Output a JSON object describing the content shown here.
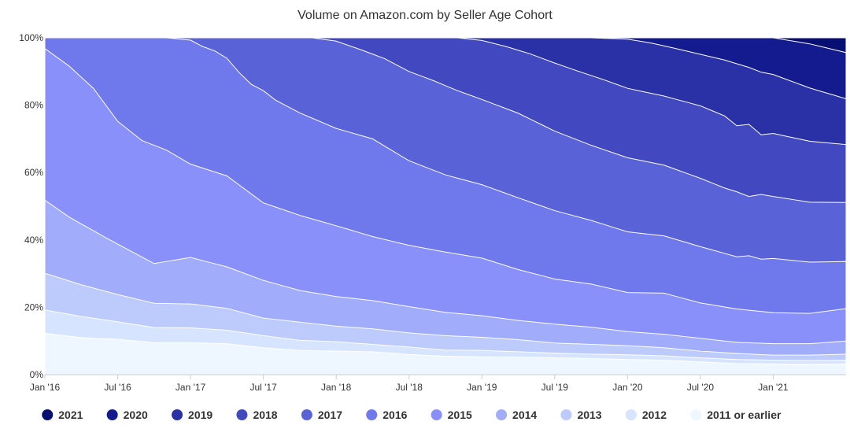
{
  "chart_data": {
    "type": "area",
    "stacked": true,
    "normalized": true,
    "title": "Volume on Amazon.com by Seller Age Cohort",
    "xlabel": "",
    "ylabel": "",
    "ylim": [
      0,
      100
    ],
    "y_ticks": [
      0,
      20,
      40,
      60,
      80,
      100
    ],
    "y_tick_labels": [
      "0%",
      "20%",
      "40%",
      "60%",
      "80%",
      "100%"
    ],
    "x_start": "Jan '16",
    "x_end_month_index": 66,
    "x_ticks": [
      {
        "label": "Jan '16",
        "month": 0
      },
      {
        "label": "Jul '16",
        "month": 6
      },
      {
        "label": "Jan '17",
        "month": 12
      },
      {
        "label": "Jul '17",
        "month": 18
      },
      {
        "label": "Jan '18",
        "month": 24
      },
      {
        "label": "Jul '18",
        "month": 30
      },
      {
        "label": "Jan '19",
        "month": 36
      },
      {
        "label": "Jul '19",
        "month": 42
      },
      {
        "label": "Jan '20",
        "month": 48
      },
      {
        "label": "Jul '20",
        "month": 54
      },
      {
        "label": "Jan '21",
        "month": 60
      }
    ],
    "legend_position": "bottom",
    "series_order_bottom_to_top": [
      "2011 or earlier",
      "2012",
      "2013",
      "2014",
      "2015",
      "2016",
      "2017",
      "2018",
      "2019",
      "2020",
      "2021"
    ],
    "cumulative_top_boundaries": [
      {
        "name": "2011 or earlier",
        "color": "#eef7ff",
        "points": [
          [
            0,
            12.3
          ],
          [
            3,
            11
          ],
          [
            6,
            10.5
          ],
          [
            9,
            9.5
          ],
          [
            12,
            9.5
          ],
          [
            15,
            9.2
          ],
          [
            18,
            8
          ],
          [
            21,
            7.2
          ],
          [
            24,
            7
          ],
          [
            27,
            6.8
          ],
          [
            30,
            6
          ],
          [
            33,
            5.5
          ],
          [
            36,
            5.3
          ],
          [
            39,
            5.2
          ],
          [
            42,
            5
          ],
          [
            45,
            4.8
          ],
          [
            48,
            4.5
          ],
          [
            51,
            4.3
          ],
          [
            54,
            3.8
          ],
          [
            57,
            3.3
          ],
          [
            60,
            3.2
          ],
          [
            63,
            3.1
          ],
          [
            66,
            3.2
          ]
        ]
      },
      {
        "name": "2012",
        "color": "#d6e4ff",
        "points": [
          [
            0,
            19.2
          ],
          [
            3,
            17.3
          ],
          [
            6,
            15.7
          ],
          [
            9,
            14
          ],
          [
            12,
            13.9
          ],
          [
            15,
            13.2
          ],
          [
            18,
            11.6
          ],
          [
            21,
            10.2
          ],
          [
            24,
            9.8
          ],
          [
            27,
            9
          ],
          [
            30,
            8.2
          ],
          [
            33,
            7.3
          ],
          [
            36,
            7.2
          ],
          [
            39,
            6.8
          ],
          [
            42,
            6.4
          ],
          [
            45,
            6.1
          ],
          [
            48,
            5.9
          ],
          [
            51,
            5.6
          ],
          [
            54,
            5
          ],
          [
            57,
            4.5
          ],
          [
            60,
            4.3
          ],
          [
            63,
            4.2
          ],
          [
            66,
            4.3
          ]
        ]
      },
      {
        "name": "2013",
        "color": "#bccbfc",
        "points": [
          [
            0,
            30.1
          ],
          [
            3,
            26.7
          ],
          [
            6,
            23.8
          ],
          [
            9,
            21.2
          ],
          [
            12,
            21
          ],
          [
            15,
            19.7
          ],
          [
            18,
            16.8
          ],
          [
            21,
            15.6
          ],
          [
            24,
            14.4
          ],
          [
            27,
            13.6
          ],
          [
            30,
            12.4
          ],
          [
            33,
            11.6
          ],
          [
            36,
            11.1
          ],
          [
            39,
            10.4
          ],
          [
            42,
            9.4
          ],
          [
            45,
            9
          ],
          [
            48,
            8.6
          ],
          [
            51,
            8
          ],
          [
            54,
            7
          ],
          [
            57,
            6.3
          ],
          [
            60,
            5.8
          ],
          [
            63,
            5.8
          ],
          [
            66,
            6.1
          ]
        ]
      },
      {
        "name": "2014",
        "color": "#a1adfb",
        "points": [
          [
            0,
            51.8
          ],
          [
            2,
            46.8
          ],
          [
            5,
            40.7
          ],
          [
            9,
            33
          ],
          [
            12,
            34.8
          ],
          [
            15,
            32
          ],
          [
            18,
            28
          ],
          [
            21,
            25
          ],
          [
            24,
            23.2
          ],
          [
            27,
            22
          ],
          [
            30,
            20.2
          ],
          [
            33,
            18.5
          ],
          [
            36,
            17.5
          ],
          [
            39,
            16.1
          ],
          [
            42,
            15
          ],
          [
            45,
            14.1
          ],
          [
            48,
            12.8
          ],
          [
            51,
            12
          ],
          [
            54,
            10.8
          ],
          [
            57,
            9.6
          ],
          [
            60,
            9.2
          ],
          [
            63,
            9.2
          ],
          [
            66,
            10
          ]
        ]
      },
      {
        "name": "2015",
        "color": "#8990f9",
        "points": [
          [
            0,
            96.8
          ],
          [
            2,
            91.6
          ],
          [
            4,
            85
          ],
          [
            6,
            75.2
          ],
          [
            8,
            69.5
          ],
          [
            10,
            66.7
          ],
          [
            12,
            62.5
          ],
          [
            15,
            59
          ],
          [
            18,
            51
          ],
          [
            21,
            47.3
          ],
          [
            24,
            44.2
          ],
          [
            27,
            41
          ],
          [
            30,
            38.4
          ],
          [
            33,
            36.4
          ],
          [
            36,
            34.6
          ],
          [
            39,
            31.2
          ],
          [
            42,
            28.4
          ],
          [
            45,
            26.9
          ],
          [
            48,
            24.4
          ],
          [
            51,
            24.2
          ],
          [
            54,
            21.3
          ],
          [
            57,
            19.5
          ],
          [
            60,
            18.4
          ],
          [
            63,
            18.2
          ],
          [
            66,
            19.6
          ]
        ]
      },
      {
        "name": "2016",
        "color": "#6f79ec",
        "points": [
          [
            0,
            100
          ],
          [
            10,
            100
          ],
          [
            12,
            99.3
          ],
          [
            13,
            97.4
          ],
          [
            14,
            96.1
          ],
          [
            15,
            93.9
          ],
          [
            16,
            89.7
          ],
          [
            17,
            86.2
          ],
          [
            18,
            84.3
          ],
          [
            19,
            81.5
          ],
          [
            21,
            77.7
          ],
          [
            24,
            73.1
          ],
          [
            27,
            70
          ],
          [
            30,
            63.5
          ],
          [
            33,
            59.3
          ],
          [
            36,
            56.4
          ],
          [
            39,
            52.5
          ],
          [
            42,
            48.7
          ],
          [
            45,
            45.8
          ],
          [
            48,
            42.4
          ],
          [
            51,
            41.2
          ],
          [
            54,
            38
          ],
          [
            57,
            35
          ],
          [
            58,
            35.3
          ],
          [
            59,
            34.3
          ],
          [
            60,
            34.5
          ],
          [
            63,
            33.4
          ],
          [
            66,
            33.6
          ]
        ]
      },
      {
        "name": "2017",
        "color": "#5962d7",
        "points": [
          [
            0,
            100
          ],
          [
            22,
            100
          ],
          [
            24,
            99
          ],
          [
            26,
            96.5
          ],
          [
            28,
            93.8
          ],
          [
            30,
            90
          ],
          [
            32,
            87.3
          ],
          [
            34,
            84.3
          ],
          [
            36,
            81.7
          ],
          [
            39,
            77.6
          ],
          [
            42,
            72.3
          ],
          [
            45,
            68.1
          ],
          [
            48,
            64.4
          ],
          [
            51,
            62.2
          ],
          [
            54,
            58.3
          ],
          [
            56,
            55.4
          ],
          [
            57,
            54.3
          ],
          [
            58,
            52.9
          ],
          [
            59,
            53.5
          ],
          [
            60,
            52.9
          ],
          [
            63,
            51.2
          ],
          [
            66,
            51.1
          ]
        ]
      },
      {
        "name": "2018",
        "color": "#4148c0",
        "points": [
          [
            0,
            100
          ],
          [
            34,
            100
          ],
          [
            36,
            99.2
          ],
          [
            38,
            97.4
          ],
          [
            40,
            95.2
          ],
          [
            42,
            92.5
          ],
          [
            44,
            90
          ],
          [
            46,
            87.6
          ],
          [
            48,
            85
          ],
          [
            51,
            82.7
          ],
          [
            54,
            79.8
          ],
          [
            56,
            76.8
          ],
          [
            57,
            73.9
          ],
          [
            58,
            74.3
          ],
          [
            59,
            71.2
          ],
          [
            60,
            71.6
          ],
          [
            63,
            69.3
          ],
          [
            66,
            68.3
          ]
        ]
      },
      {
        "name": "2019",
        "color": "#2a31a6",
        "points": [
          [
            0,
            100
          ],
          [
            45,
            100
          ],
          [
            48,
            99.6
          ],
          [
            50,
            98.4
          ],
          [
            52,
            96.8
          ],
          [
            54,
            95.1
          ],
          [
            56,
            93.4
          ],
          [
            58,
            91.2
          ],
          [
            59,
            89.8
          ],
          [
            60,
            89.1
          ],
          [
            63,
            85.1
          ],
          [
            66,
            81.9
          ]
        ]
      },
      {
        "name": "2020",
        "color": "#131b8f",
        "points": [
          [
            0,
            100
          ],
          [
            60,
            100
          ],
          [
            63,
            98.2
          ],
          [
            66,
            95.6
          ]
        ]
      },
      {
        "name": "2021",
        "color": "#080f72",
        "points": [
          [
            0,
            100
          ],
          [
            66,
            100
          ]
        ]
      }
    ],
    "legend": [
      {
        "label": "2021",
        "color": "#080f72"
      },
      {
        "label": "2020",
        "color": "#131b8f"
      },
      {
        "label": "2019",
        "color": "#2a31a6"
      },
      {
        "label": "2018",
        "color": "#4148c0"
      },
      {
        "label": "2017",
        "color": "#5962d7"
      },
      {
        "label": "2016",
        "color": "#6f79ec"
      },
      {
        "label": "2015",
        "color": "#8990f9"
      },
      {
        "label": "2014",
        "color": "#a1adfb"
      },
      {
        "label": "2013",
        "color": "#bccbfc"
      },
      {
        "label": "2012",
        "color": "#d6e4ff"
      },
      {
        "label": "2011 or earlier",
        "color": "#eef7ff"
      }
    ]
  }
}
